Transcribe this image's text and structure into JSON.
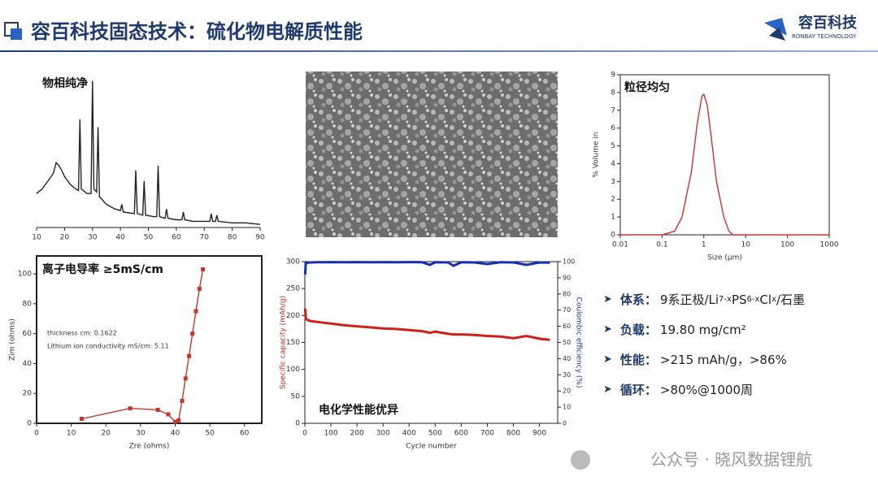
{
  "header": {
    "title": "容百科技固态技术：硫化物电解质性能",
    "logo": "容百科技",
    "logo_sub": "RONBAY TECHNOLOGY"
  },
  "chart_data": [
    {
      "type": "line",
      "title": "物相纯净",
      "xlim": [
        10,
        90
      ],
      "xticks": [
        10,
        20,
        30,
        40,
        50,
        60,
        70,
        80,
        90
      ],
      "ylim": [
        0,
        100
      ],
      "frame": false,
      "x": [
        10,
        12,
        14,
        16,
        17,
        18,
        19,
        20,
        22,
        24,
        25,
        25.5,
        26,
        28,
        29.5,
        30,
        30.5,
        31.5,
        32,
        32.5,
        35,
        38,
        40,
        40.5,
        41,
        45,
        45.5,
        46,
        48,
        48.5,
        49,
        52,
        53,
        53.5,
        54,
        56,
        56.5,
        57,
        60,
        62,
        62.5,
        63,
        66,
        70,
        72,
        72.5,
        73,
        74,
        74.5,
        75,
        80,
        85,
        90
      ],
      "series": [
        {
          "name": "XRD",
          "color": "#222222",
          "values": [
            22,
            25,
            30,
            35,
            42,
            40,
            37,
            33,
            28,
            25,
            24,
            70,
            25,
            22,
            22,
            95,
            25,
            23,
            65,
            20,
            15,
            12,
            11,
            15,
            10,
            9,
            37,
            9,
            8,
            30,
            8,
            7,
            7,
            40,
            7,
            6,
            12,
            6,
            5,
            5,
            10,
            5,
            4,
            4,
            4,
            9,
            4,
            4,
            8,
            4,
            3,
            3,
            2
          ]
        }
      ]
    },
    {
      "type": "line",
      "title": "粒径均匀",
      "xscale": "log",
      "xlim": [
        0.01,
        1000
      ],
      "xticks": [
        0.01,
        0.1,
        1,
        10,
        100,
        1000
      ],
      "ylim": [
        0,
        9
      ],
      "yticks": [
        0,
        1,
        2,
        3,
        4,
        5,
        6,
        7,
        8,
        9
      ],
      "frame": true,
      "xlabel": "Size (μm)",
      "ylabel": "% Volume in",
      "x": [
        0.01,
        0.1,
        0.2,
        0.3,
        0.5,
        0.7,
        0.9,
        1,
        1.2,
        1.5,
        2,
        3,
        4,
        5,
        10,
        1000
      ],
      "series": [
        {
          "name": "PSD",
          "color": "#d03030",
          "values": [
            0,
            0,
            0.2,
            1,
            3.5,
            6.3,
            7.8,
            7.9,
            7.3,
            5.5,
            3,
            1,
            0.2,
            0,
            0,
            0
          ]
        }
      ]
    },
    {
      "type": "line",
      "title": "离子电导率 ≥5mS/cm",
      "xlim": [
        0,
        65
      ],
      "xticks": [
        0,
        10,
        20,
        30,
        40,
        50,
        60
      ],
      "ylim": [
        0,
        112
      ],
      "yticks": [
        0,
        20,
        40,
        60,
        80,
        100
      ],
      "frame": true,
      "markers": true,
      "xlabel": "Zre (ohms)",
      "ylabel": "Zim (ohms)",
      "annotations": [
        "thickness cm:  0.1622",
        "Lithium ion conductivity mS/cm: 5.11"
      ],
      "x": [
        13,
        27,
        35,
        38,
        40,
        41,
        42,
        43,
        44,
        45,
        46,
        47,
        48
      ],
      "series": [
        {
          "name": "EIS",
          "color": "#c0392b",
          "values": [
            3,
            10,
            9,
            6,
            1,
            2,
            15,
            30,
            45,
            60,
            75,
            90,
            103
          ]
        }
      ]
    },
    {
      "type": "line",
      "title": "电化学性能优异",
      "xlim": [
        0,
        970
      ],
      "xticks": [
        0,
        100,
        200,
        300,
        400,
        500,
        600,
        700,
        800,
        900
      ],
      "ylim": [
        0,
        300
      ],
      "yticks": [
        0,
        50,
        100,
        150,
        200,
        250,
        300
      ],
      "y2lim": [
        0,
        100
      ],
      "y2ticks": [
        0,
        10,
        20,
        30,
        40,
        50,
        60,
        70,
        80,
        90,
        100
      ],
      "frame": true,
      "xlabel": "Cycle number",
      "ylabel": "Specific capacity (mAh/g)",
      "y2label": "Coulombic efficiency (%)",
      "x": [
        1,
        3,
        5,
        10,
        20,
        50,
        100,
        150,
        200,
        250,
        300,
        350,
        400,
        450,
        480,
        500,
        550,
        570,
        600,
        650,
        700,
        750,
        800,
        850,
        900,
        940
      ],
      "series": [
        {
          "name": "Capacity",
          "color": "#d0201c",
          "values": [
            213,
            198,
            193,
            192,
            190,
            188,
            185,
            182,
            180,
            178,
            176,
            175,
            173,
            171,
            168,
            170,
            166,
            165,
            165,
            164,
            162,
            161,
            158,
            162,
            157,
            155
          ]
        },
        {
          "name": "Efficiency",
          "color": "#1a2fb0",
          "axis": "y2",
          "values": [
            92,
            98,
            99,
            99.3,
            99.5,
            99.6,
            99.7,
            99.6,
            99.7,
            99.6,
            99.7,
            99.6,
            99.7,
            99.6,
            98,
            99.6,
            99.5,
            97.5,
            99.6,
            99.5,
            98.5,
            99.6,
            99.5,
            98,
            99.5,
            99.4
          ]
        }
      ]
    }
  ],
  "bullets": [
    {
      "label": "体系：",
      "text": [
        "9系正极/Li",
        "7-x",
        "PS",
        "6-x",
        "Cl",
        "x",
        "/石墨"
      ]
    },
    {
      "label": "负载：",
      "text": "19.80 mg/cm²"
    },
    {
      "label": "性能：",
      "text": ">215 mAh/g，>86%"
    },
    {
      "label": "循环：",
      "text": ">80%@1000周"
    }
  ],
  "watermark": "公众号 · 晓风数据锂航"
}
